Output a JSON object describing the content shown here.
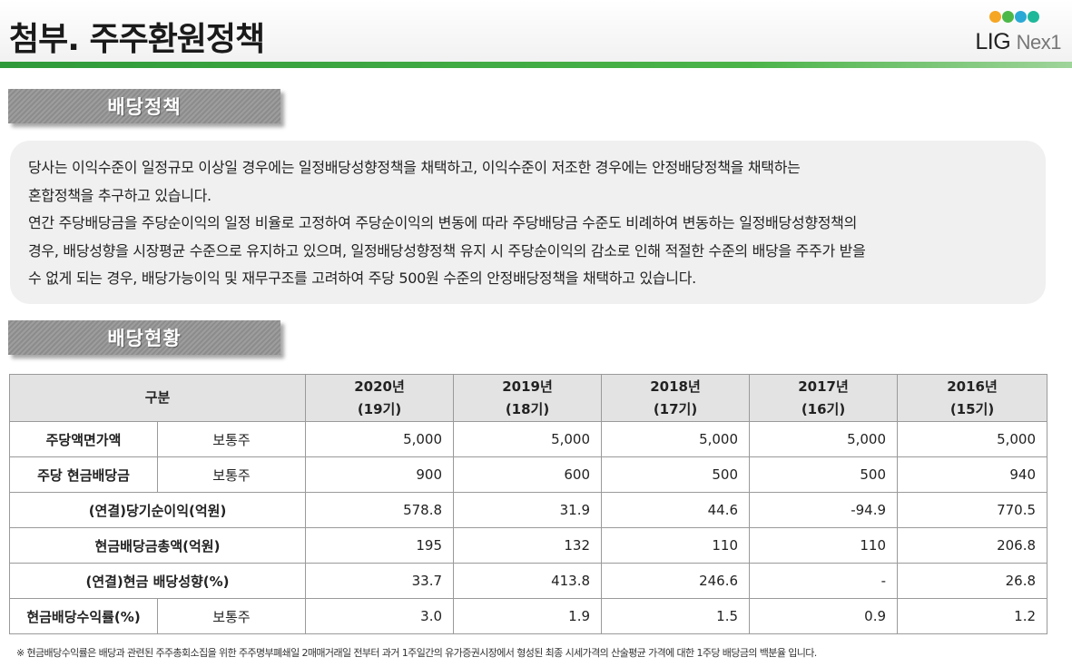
{
  "header": {
    "title": "첨부. 주주환원정책",
    "logo": {
      "text_main": "LIG",
      "text_sub": "Nex1",
      "dot_colors": [
        "#f5a623",
        "#4cb848",
        "#2aa9d6",
        "#1fb89a"
      ]
    }
  },
  "section1": {
    "title": "배당정책"
  },
  "policy": {
    "lines": [
      "당사는 이익수준이 일정규모 이상일 경우에는 일정배당성향정책을 채택하고, 이익수준이 저조한 경우에는 안정배당정책을 채택하는",
      "혼합정책을 추구하고 있습니다.",
      "연간 주당배당금을 주당순이익의 일정 비율로 고정하여 주당순이익의 변동에 따라 주당배당금 수준도 비례하여 변동하는 일정배당성향정책의",
      "경우, 배당성향을 시장평균 수준으로 유지하고 있으며, 일정배당성향정책 유지 시 주당순이익의 감소로 인해 적절한 수준의 배당을 주주가 받을",
      "수 없게 되는 경우, 배당가능이익 및 재무구조를 고려하여 주당 500원 수준의 안정배당정책을 채택하고 있습니다."
    ]
  },
  "section2": {
    "title": "배당현황"
  },
  "table": {
    "header_label": "구분",
    "columns": [
      {
        "year": "2020년",
        "period": "(19기)"
      },
      {
        "year": "2019년",
        "period": "(18기)"
      },
      {
        "year": "2018년",
        "period": "(17기)"
      },
      {
        "year": "2017년",
        "period": "(16기)"
      },
      {
        "year": "2016년",
        "period": "(15기)"
      }
    ],
    "rows": [
      {
        "label": "주당액면가액",
        "sub": "보통주",
        "values": [
          "5,000",
          "5,000",
          "5,000",
          "5,000",
          "5,000"
        ]
      },
      {
        "label": "주당 현금배당금",
        "sub": "보통주",
        "values": [
          "900",
          "600",
          "500",
          "500",
          "940"
        ]
      },
      {
        "label": "(연결)당기순이익(억원)",
        "sub": "",
        "values": [
          "578.8",
          "31.9",
          "44.6",
          "-94.9",
          "770.5"
        ]
      },
      {
        "label": "현금배당금총액(억원)",
        "sub": "",
        "values": [
          "195",
          "132",
          "110",
          "110",
          "206.8"
        ]
      },
      {
        "label": "(연결)현금 배당성향(%)",
        "sub": "",
        "values": [
          "33.7",
          "413.8",
          "246.6",
          "-",
          "26.8"
        ]
      },
      {
        "label": "현금배당수익률(%)",
        "sub": "보통주",
        "values": [
          "3.0",
          "1.9",
          "1.5",
          "0.9",
          "1.2"
        ]
      }
    ]
  },
  "footnote": "※ 현금배당수익률은 배당과 관련된 주주총회소집을 위한 주주명부폐쇄일 2매매거래일 전부터 과거 1주일간의 유가증권시장에서 형성된 최종 시세가격의 산술평균 가격에 대한 1주당 배당금의 백분율 입니다."
}
